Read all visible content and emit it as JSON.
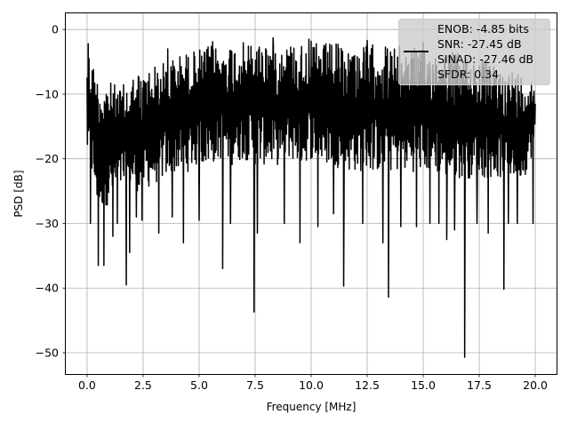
{
  "chart_data": {
    "type": "line",
    "title": "",
    "xlabel": "Frequency [MHz]",
    "ylabel": "PSD [dB]",
    "xlim": [
      -0.95,
      20.95
    ],
    "ylim": [
      -53.3,
      2.5
    ],
    "xticks": [
      0.0,
      2.5,
      5.0,
      7.5,
      10.0,
      12.5,
      15.0,
      17.5,
      20.0
    ],
    "xtick_labels": [
      "0.0",
      "2.5",
      "5.0",
      "7.5",
      "10.0",
      "12.5",
      "15.0",
      "17.5",
      "20.0"
    ],
    "yticks": [
      0,
      -10,
      -20,
      -30,
      -40,
      -50
    ],
    "ytick_labels": [
      "0",
      "−10",
      "−20",
      "−30",
      "−40",
      "−50"
    ],
    "grid": true,
    "legend_position": "top-right",
    "legend": [
      "ENOB: -4.85 bits",
      "SNR: -27.45 dB",
      "SINAD: -27.46 dB",
      "SFDR: 0.34"
    ],
    "series": [
      {
        "color": "#000000",
        "x": [
          0.0,
          0.5,
          1.0,
          1.5,
          2.0,
          2.5,
          3.0,
          3.5,
          4.0,
          4.5,
          5.0,
          5.5,
          6.0,
          6.5,
          7.0,
          7.5,
          8.0,
          8.5,
          9.0,
          9.5,
          10.0,
          10.5,
          11.0,
          11.5,
          12.0,
          12.5,
          13.0,
          13.5,
          14.0,
          14.5,
          15.0,
          15.5,
          16.0,
          16.5,
          17.0,
          17.5,
          18.0,
          18.5,
          19.0,
          19.5,
          20.0
        ],
        "upper": [
          -2.2,
          -7.5,
          -8,
          -9,
          -7,
          -6,
          -5.5,
          -5,
          -4,
          -3.5,
          -3,
          -2.5,
          -2.5,
          -2,
          -2,
          -2,
          -1.5,
          -2.5,
          -2,
          -2,
          -1.8,
          -2.2,
          -2,
          -2.5,
          -2.5,
          -2.5,
          -2,
          -2.5,
          -2.5,
          -2.5,
          -3,
          -3,
          -3,
          -3.5,
          -4,
          -4,
          -5.5,
          -6,
          -6,
          -7,
          -8
        ],
        "lower": [
          -20,
          -28,
          -27,
          -25,
          -25,
          -25,
          -24,
          -23,
          -22,
          -22,
          -21,
          -21,
          -20,
          -21,
          -20,
          -21,
          -21,
          -21,
          -20,
          -21,
          -20,
          -21,
          -21,
          -22,
          -22,
          -22,
          -22,
          -22,
          -22,
          -22,
          -22,
          -22,
          -23,
          -23,
          -23,
          -23,
          -23,
          -23,
          -23,
          -23,
          -18
        ],
        "dips": [
          [
            0.15,
            -30
          ],
          [
            0.5,
            -36.5
          ],
          [
            0.75,
            -36.5
          ],
          [
            1.15,
            -32
          ],
          [
            1.35,
            -30
          ],
          [
            1.75,
            -39.5
          ],
          [
            1.9,
            -34.5
          ],
          [
            2.2,
            -29
          ],
          [
            2.45,
            -29.5
          ],
          [
            3.2,
            -31.5
          ],
          [
            3.8,
            -29
          ],
          [
            4.3,
            -33
          ],
          [
            5.0,
            -29.5
          ],
          [
            6.05,
            -37
          ],
          [
            6.4,
            -30
          ],
          [
            7.45,
            -43.7
          ],
          [
            7.6,
            -31.5
          ],
          [
            8.8,
            -30
          ],
          [
            9.5,
            -33
          ],
          [
            10.3,
            -30.5
          ],
          [
            11.0,
            -28.5
          ],
          [
            11.45,
            -39.7
          ],
          [
            12.3,
            -30
          ],
          [
            13.2,
            -33
          ],
          [
            13.45,
            -41.4
          ],
          [
            14.0,
            -30.5
          ],
          [
            14.7,
            -30.5
          ],
          [
            15.3,
            -30
          ],
          [
            15.7,
            -30
          ],
          [
            16.05,
            -32.5
          ],
          [
            16.4,
            -31
          ],
          [
            16.85,
            -50.7
          ],
          [
            17.4,
            -30
          ],
          [
            17.9,
            -31.5
          ],
          [
            18.6,
            -40.2
          ],
          [
            18.8,
            -30
          ],
          [
            19.2,
            -30
          ],
          [
            19.9,
            -30
          ]
        ],
        "peaks": [
          [
            0.05,
            -2.2
          ],
          [
            3.6,
            -3
          ],
          [
            5.6,
            -1.9
          ],
          [
            8.3,
            -1.3
          ],
          [
            9.9,
            -1.5
          ],
          [
            12.5,
            -1.7
          ],
          [
            15.0,
            -2
          ]
        ]
      }
    ]
  }
}
